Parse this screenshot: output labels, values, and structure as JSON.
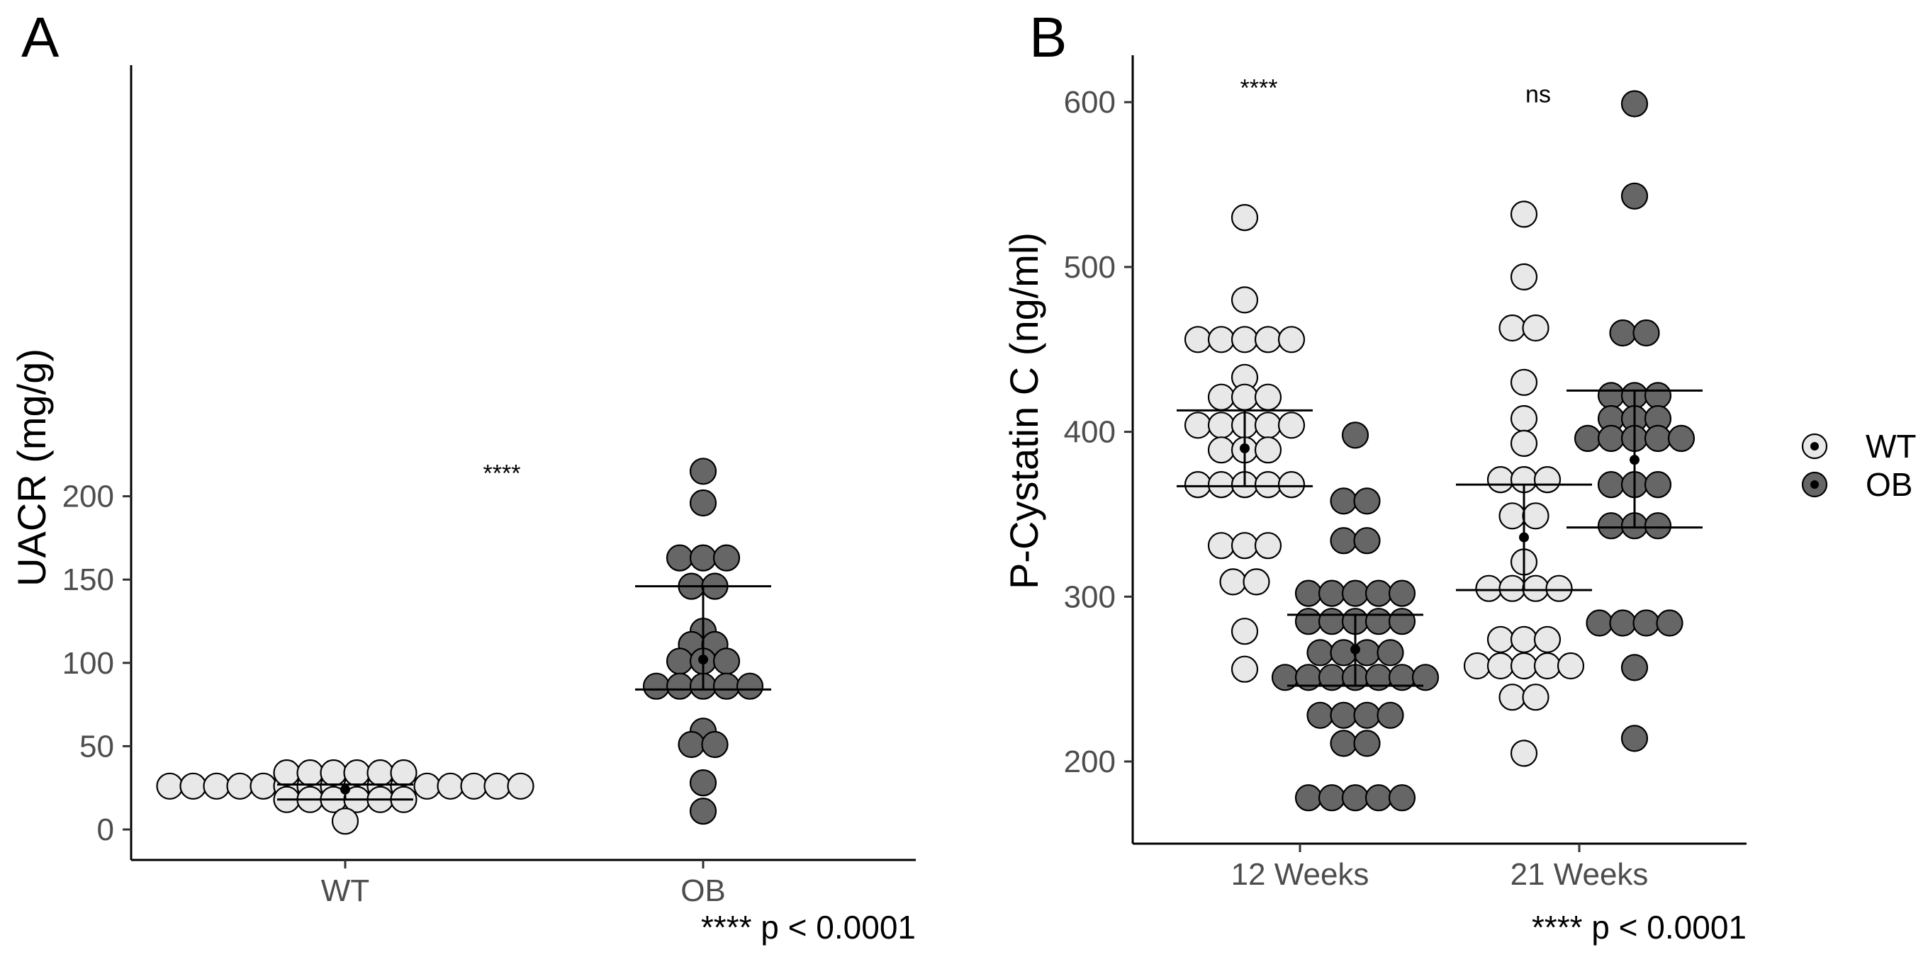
{
  "chart_data": [
    {
      "panel": "A",
      "type": "scatter",
      "subtype": "dot-plot (beeswarm) with mean ± SE error bars",
      "ylabel": "UACR (mg/g)",
      "xlabel": "",
      "categories": [
        "WT",
        "OB"
      ],
      "ylim": [
        -10,
        230
      ],
      "yticks": [
        0,
        50,
        100,
        150,
        200
      ],
      "grid": false,
      "series": [
        {
          "name": "WT",
          "category": "WT",
          "fill": "#e8e8e8",
          "values": [
            26,
            26,
            26,
            26,
            26,
            26,
            26,
            26,
            26,
            26,
            26,
            26,
            26,
            26,
            26,
            26,
            34,
            34,
            34,
            34,
            34,
            34,
            18,
            18,
            18,
            18,
            18,
            18,
            5
          ],
          "mean": 24,
          "err_low": 18,
          "err_high": 27
        },
        {
          "name": "OB",
          "category": "OB",
          "fill": "#666666",
          "values": [
            215,
            196,
            163,
            163,
            163,
            146,
            146,
            119,
            111,
            111,
            101,
            101,
            101,
            86,
            86,
            86,
            86,
            86,
            59,
            51,
            51,
            28,
            11
          ],
          "mean": 102,
          "err_low": 84,
          "err_high": 146
        }
      ],
      "annotations": [
        {
          "text": "****",
          "x_between": [
            "WT",
            "OB"
          ],
          "y": 214
        }
      ],
      "footnote": "**** p < 0.0001"
    },
    {
      "panel": "B",
      "type": "scatter",
      "subtype": "grouped dot-plot (beeswarm) with mean ± SE error bars",
      "ylabel": "P-Cystatin C (ng/ml)",
      "xlabel": "",
      "categories": [
        "12 Weeks",
        "21 Weeks"
      ],
      "ylim": [
        150,
        628
      ],
      "yticks": [
        200,
        300,
        400,
        500,
        600
      ],
      "grid": false,
      "legend": {
        "placement": "right",
        "entries": [
          {
            "label": "WT",
            "fill": "#e8e8e8"
          },
          {
            "label": "OB",
            "fill": "#666666"
          }
        ]
      },
      "series": [
        {
          "name": "WT",
          "groups": [
            {
              "category": "12 Weeks",
              "values": [
                530,
                480,
                456,
                456,
                456,
                456,
                456,
                433,
                421,
                421,
                421,
                404,
                404,
                404,
                404,
                404,
                389,
                389,
                389,
                368,
                368,
                368,
                368,
                368,
                331,
                331,
                331,
                309,
                309,
                279,
                256
              ],
              "mean": 390,
              "err_low": 367,
              "err_high": 413
            },
            {
              "category": "21 Weeks",
              "values": [
                532,
                494,
                463,
                463,
                430,
                408,
                393,
                371,
                371,
                371,
                349,
                349,
                321,
                305,
                305,
                305,
                305,
                274,
                274,
                274,
                258,
                258,
                258,
                258,
                258,
                239,
                239,
                205
              ],
              "mean": 336,
              "err_low": 304,
              "err_high": 368
            }
          ]
        },
        {
          "name": "OB",
          "groups": [
            {
              "category": "12 Weeks",
              "values": [
                398,
                358,
                358,
                334,
                334,
                302,
                302,
                302,
                302,
                302,
                285,
                285,
                285,
                285,
                285,
                266,
                266,
                266,
                266,
                251,
                251,
                251,
                251,
                251,
                251,
                251,
                228,
                228,
                228,
                228,
                211,
                211,
                178,
                178,
                178,
                178,
                178
              ],
              "mean": 268,
              "err_low": 246,
              "err_high": 289
            },
            {
              "category": "21 Weeks",
              "values": [
                599,
                543,
                460,
                460,
                422,
                422,
                422,
                408,
                408,
                408,
                396,
                396,
                396,
                396,
                396,
                368,
                368,
                368,
                343,
                343,
                343,
                284,
                284,
                284,
                284,
                257,
                214
              ],
              "mean": 383,
              "err_low": 342,
              "err_high": 425
            }
          ]
        }
      ],
      "annotations": [
        {
          "text": "****",
          "category": "12 Weeks",
          "y": 609
        },
        {
          "text": "ns",
          "category": "21 Weeks",
          "y": 605
        }
      ],
      "footnote": "**** p < 0.0001"
    }
  ]
}
